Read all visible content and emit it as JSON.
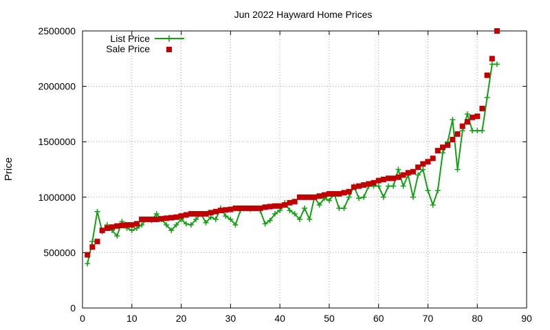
{
  "chart_data": {
    "type": "line",
    "title": "Jun 2022 Hayward Home Prices",
    "xlabel": "",
    "ylabel": "Price",
    "xlim": [
      0,
      90
    ],
    "ylim": [
      0,
      2500000
    ],
    "xticks": [
      0,
      10,
      20,
      30,
      40,
      50,
      60,
      70,
      80,
      90
    ],
    "yticks": [
      0,
      500000,
      1000000,
      1500000,
      2000000,
      2500000
    ],
    "grid": true,
    "legend_position": "top-left",
    "series": [
      {
        "name": "List Price",
        "style": "line-plus",
        "color": "#11a011",
        "x": [
          1,
          2,
          3,
          4,
          5,
          6,
          7,
          8,
          9,
          10,
          11,
          12,
          13,
          14,
          15,
          16,
          17,
          18,
          19,
          20,
          21,
          22,
          23,
          24,
          25,
          26,
          27,
          28,
          29,
          30,
          31,
          32,
          33,
          34,
          35,
          36,
          37,
          38,
          39,
          40,
          41,
          42,
          43,
          44,
          45,
          46,
          47,
          48,
          49,
          50,
          51,
          52,
          53,
          54,
          55,
          56,
          57,
          58,
          59,
          60,
          61,
          62,
          63,
          64,
          65,
          66,
          67,
          68,
          69,
          70,
          71,
          72,
          73,
          74,
          75,
          76,
          77,
          78,
          79,
          80,
          81,
          82,
          83,
          84
        ],
        "values": [
          400000,
          600000,
          870000,
          690000,
          750000,
          700000,
          650000,
          780000,
          720000,
          700000,
          720000,
          750000,
          800000,
          790000,
          850000,
          800000,
          750000,
          700000,
          750000,
          800000,
          760000,
          750000,
          800000,
          850000,
          770000,
          820000,
          800000,
          900000,
          830000,
          800000,
          750000,
          880000,
          900000,
          890000,
          900000,
          880000,
          760000,
          790000,
          850000,
          880000,
          950000,
          880000,
          850000,
          800000,
          900000,
          800000,
          1000000,
          930000,
          990000,
          970000,
          1030000,
          900000,
          900000,
          1000000,
          1100000,
          990000,
          1000000,
          1100000,
          1100000,
          1100000,
          1000000,
          1100000,
          1100000,
          1250000,
          1100000,
          1200000,
          1000000,
          1200000,
          1250000,
          1060000,
          930000,
          1060000,
          1400000,
          1500000,
          1700000,
          1250000,
          1600000,
          1750000,
          1600000,
          1600000,
          1600000,
          1900000,
          2200000,
          2200000
        ]
      },
      {
        "name": "Sale Price",
        "style": "points-square",
        "color": "#c00000",
        "x": [
          1,
          2,
          3,
          4,
          5,
          6,
          7,
          8,
          9,
          10,
          11,
          12,
          13,
          14,
          15,
          16,
          17,
          18,
          19,
          20,
          21,
          22,
          23,
          24,
          25,
          26,
          27,
          28,
          29,
          30,
          31,
          32,
          33,
          34,
          35,
          36,
          37,
          38,
          39,
          40,
          41,
          42,
          43,
          44,
          45,
          46,
          47,
          48,
          49,
          50,
          51,
          52,
          53,
          54,
          55,
          56,
          57,
          58,
          59,
          60,
          61,
          62,
          63,
          64,
          65,
          66,
          67,
          68,
          69,
          70,
          71,
          72,
          73,
          74,
          75,
          76,
          77,
          78,
          79,
          80,
          81,
          82,
          83,
          84
        ],
        "values": [
          480000,
          550000,
          600000,
          700000,
          720000,
          730000,
          740000,
          745000,
          750000,
          750000,
          760000,
          800000,
          800000,
          800000,
          800000,
          805000,
          810000,
          815000,
          820000,
          830000,
          840000,
          850000,
          850000,
          850000,
          850000,
          860000,
          870000,
          880000,
          885000,
          890000,
          900000,
          900000,
          900000,
          900000,
          900000,
          900000,
          910000,
          915000,
          920000,
          920000,
          930000,
          950000,
          960000,
          1000000,
          1000000,
          1000000,
          1000000,
          1010000,
          1020000,
          1030000,
          1030000,
          1030000,
          1040000,
          1050000,
          1090000,
          1100000,
          1110000,
          1120000,
          1130000,
          1150000,
          1160000,
          1170000,
          1170000,
          1180000,
          1200000,
          1220000,
          1230000,
          1270000,
          1300000,
          1320000,
          1350000,
          1420000,
          1450000,
          1470000,
          1520000,
          1570000,
          1640000,
          1680000,
          1720000,
          1730000,
          1800000,
          2100000,
          2250000,
          2500000
        ]
      }
    ]
  }
}
